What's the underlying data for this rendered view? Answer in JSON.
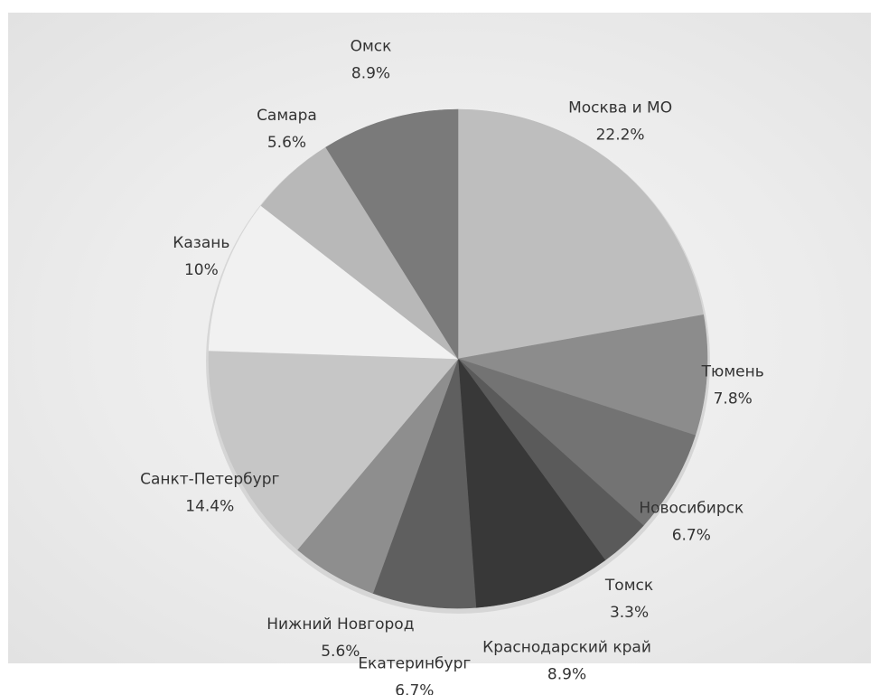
{
  "chart_data": {
    "type": "pie",
    "start_angle_deg": 0,
    "direction": "clockwise",
    "slices": [
      {
        "label": "Москва и МО",
        "value": 22.2,
        "pct_label": "22.2%",
        "color": "#bebebe"
      },
      {
        "label": "Тюмень",
        "value": 7.8,
        "pct_label": "7.8%",
        "color": "#8c8c8c"
      },
      {
        "label": "Новосибирск",
        "value": 6.7,
        "pct_label": "6.7%",
        "color": "#737373"
      },
      {
        "label": "Томск",
        "value": 3.3,
        "pct_label": "3.3%",
        "color": "#5a5a5a"
      },
      {
        "label": "Краснодарский край",
        "value": 8.9,
        "pct_label": "8.9%",
        "color": "#383838"
      },
      {
        "label": "Екатеринбург",
        "value": 6.7,
        "pct_label": "6.7%",
        "color": "#5f5f5f"
      },
      {
        "label": "Нижний Новгород",
        "value": 5.6,
        "pct_label": "5.6%",
        "color": "#8e8e8e"
      },
      {
        "label": "Санкт-Петербург",
        "value": 14.4,
        "pct_label": "14.4%",
        "color": "#c6c6c6"
      },
      {
        "label": "Казань",
        "value": 10,
        "pct_label": "10%",
        "color": "#f1f1f1"
      },
      {
        "label": "Самара",
        "value": 5.6,
        "pct_label": "5.6%",
        "color": "#b8b8b8"
      },
      {
        "label": "Омск",
        "value": 8.9,
        "pct_label": "8.9%",
        "color": "#7a7a7a"
      }
    ]
  }
}
